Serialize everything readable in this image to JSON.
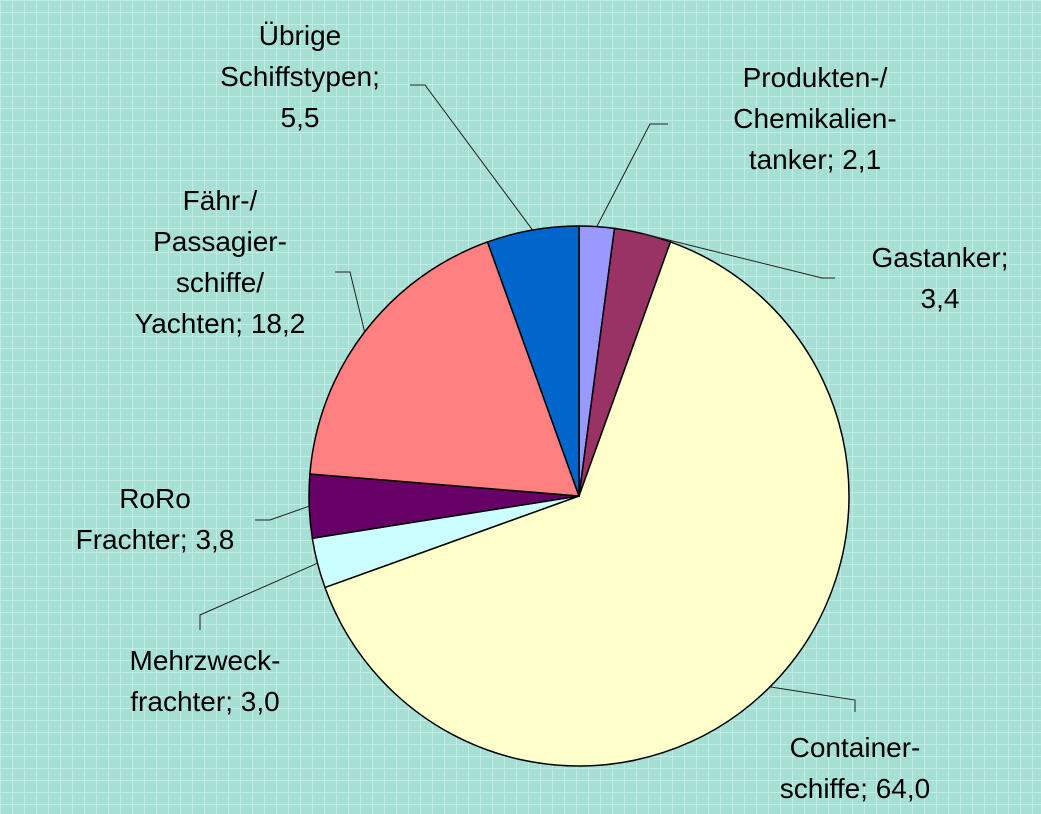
{
  "chart_data": {
    "type": "pie",
    "categories": [
      "Produkten-/\nChemikalien-\ntanker",
      "Gastanker",
      "Container-\nschiffe",
      "Mehrzweck-\nfrachter",
      "RoRo\nFrachter",
      "Fähr-/\nPassagier-\nschiffe/\nYachten",
      "Übrige\nSchiffstypen"
    ],
    "values": [
      2.1,
      3.4,
      64.0,
      3.0,
      3.8,
      18.2,
      5.5
    ],
    "value_labels": [
      "2,1",
      "3,4",
      "64,0",
      "3,0",
      "3,8",
      "18,2",
      "5,5"
    ],
    "separator": "; ",
    "colors": [
      "#9999ff",
      "#993366",
      "#ffffcc",
      "#ccffff",
      "#660066",
      "#ff8080",
      "#0066cc"
    ]
  }
}
